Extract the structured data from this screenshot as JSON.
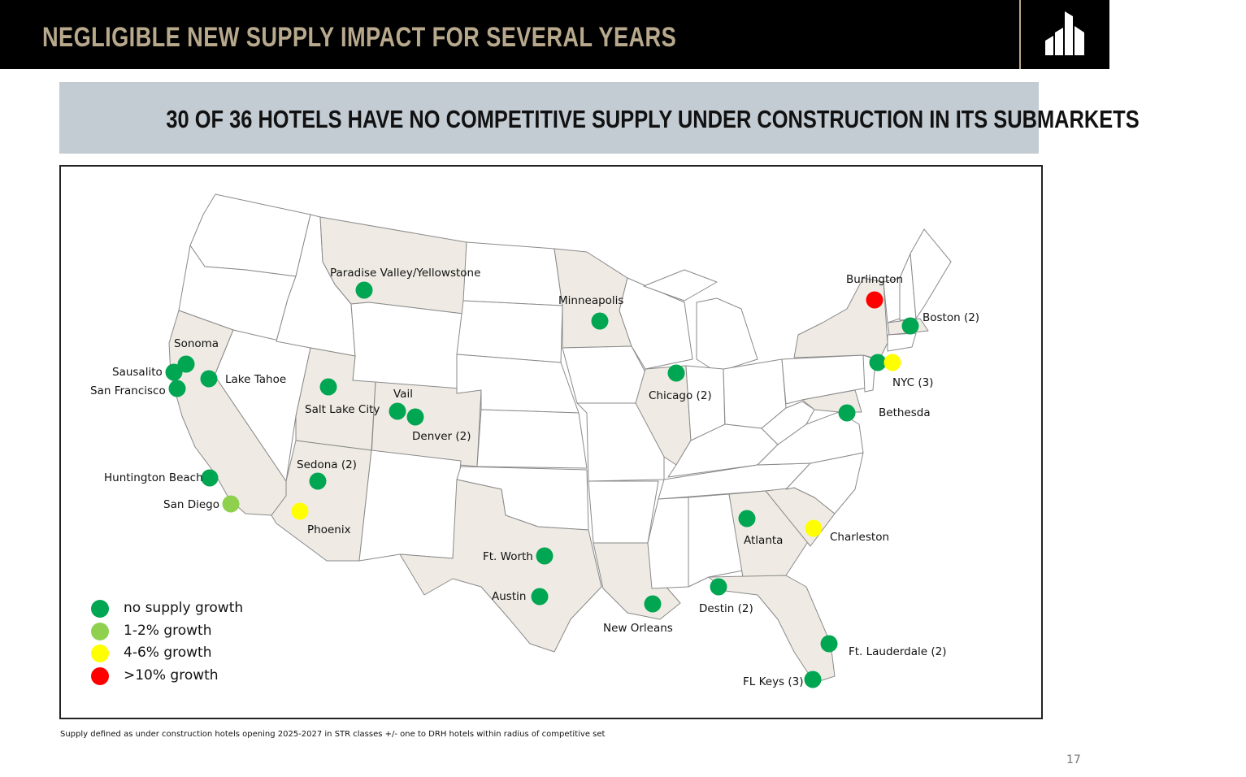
{
  "header": {
    "title": "NEGLIGIBLE NEW SUPPLY IMPACT FOR SEVERAL YEARS",
    "background": "#000000",
    "title_color": "#b8a98d",
    "logo": "building-logo-icon"
  },
  "banner": {
    "text": "30 OF 36 HOTELS HAVE NO COMPETITIVE SUPPLY UNDER CONSTRUCTION IN ITS SUBMARKETS",
    "background": "#c3cbd3"
  },
  "map": {
    "highlight_fill": "#efebe4",
    "plain_fill": "#ffffff",
    "stroke": "#8a8a8a",
    "highlighted_states": [
      "California",
      "Montana",
      "Utah",
      "Colorado",
      "Arizona",
      "Texas",
      "Louisiana",
      "Minnesota",
      "Illinois",
      "Georgia",
      "South Carolina",
      "Florida",
      "New York",
      "Massachusetts",
      "Maryland"
    ]
  },
  "legend": [
    {
      "label": "no supply  growth",
      "color": "#00a651",
      "key": "green"
    },
    {
      "label": "1-2% growth",
      "color": "#8fd14f",
      "key": "lightgreen"
    },
    {
      "label": "4-6% growth",
      "color": "#ffff00",
      "key": "yellow"
    },
    {
      "label": ">10% growth",
      "color": "#ff0000",
      "key": "red"
    }
  ],
  "markers": [
    {
      "name": "Paradise Valley/Yellowstone",
      "color": "green"
    },
    {
      "name": "Minneapolis",
      "color": "green"
    },
    {
      "name": "Burlington",
      "color": "red"
    },
    {
      "name": "Boston (2)",
      "color": "green"
    },
    {
      "name": "NYC (3)",
      "color": "green"
    },
    {
      "name": "NYC (3) yellow",
      "color": "yellow"
    },
    {
      "name": "Bethesda",
      "color": "green"
    },
    {
      "name": "Sonoma",
      "color": "green"
    },
    {
      "name": "Sausalito",
      "color": "green"
    },
    {
      "name": "San Francisco",
      "color": "green"
    },
    {
      "name": "Lake Tahoe",
      "color": "green"
    },
    {
      "name": "Salt Lake City",
      "color": "green"
    },
    {
      "name": "Vail",
      "color": "green"
    },
    {
      "name": "Denver (2)",
      "color": "green"
    },
    {
      "name": "Chicago (2)",
      "color": "green"
    },
    {
      "name": "Sedona (2)",
      "color": "green"
    },
    {
      "name": "Huntington Beach",
      "color": "green"
    },
    {
      "name": "San Diego",
      "color": "lightgreen"
    },
    {
      "name": "Phoenix",
      "color": "yellow"
    },
    {
      "name": "Ft. Worth",
      "color": "green"
    },
    {
      "name": "Austin",
      "color": "green"
    },
    {
      "name": "New Orleans",
      "color": "green"
    },
    {
      "name": "Destin (2)",
      "color": "green"
    },
    {
      "name": "Atlanta",
      "color": "green"
    },
    {
      "name": "Charleston",
      "color": "yellow"
    },
    {
      "name": "Ft. Lauderdale (2)",
      "color": "green"
    },
    {
      "name": "FL Keys (3)",
      "color": "green"
    }
  ],
  "labels": {
    "paradise": "Paradise Valley/Yellowstone",
    "minneapolis": "Minneapolis",
    "burlington": "Burlington",
    "boston": "Boston (2)",
    "nyc": "NYC (3)",
    "bethesda": "Bethesda",
    "sonoma": "Sonoma",
    "sausalito": "Sausalito",
    "sanfrancisco": "San Francisco",
    "laketahoe": "Lake Tahoe",
    "saltlake": "Salt Lake City",
    "vail": "Vail",
    "denver": "Denver (2)",
    "chicago": "Chicago (2)",
    "sedona": "Sedona (2)",
    "huntington": "Huntington Beach",
    "sandiego": "San Diego",
    "phoenix": "Phoenix",
    "ftworth": "Ft. Worth",
    "austin": "Austin",
    "neworleans": "New Orleans",
    "destin": "Destin (2)",
    "atlanta": "Atlanta",
    "charleston": "Charleston",
    "ftlauderdale": "Ft. Lauderdale (2)",
    "flkeys": "FL Keys (3)"
  },
  "footnote": "Supply defined as under construction hotels opening 2025-2027 in STR classes +/- one to DRH hotels within radius of competitive set",
  "page_number": "17"
}
